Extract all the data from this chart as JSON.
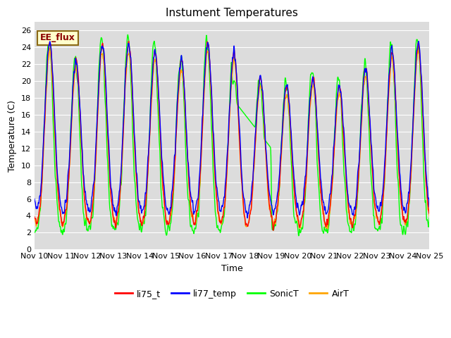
{
  "title": "Instument Temperatures",
  "xlabel": "Time",
  "ylabel": "Temperature (C)",
  "ylim": [
    0,
    27
  ],
  "yticks": [
    0,
    2,
    4,
    6,
    8,
    10,
    12,
    14,
    16,
    18,
    20,
    22,
    24,
    26
  ],
  "xtick_labels": [
    "Nov 10",
    "Nov 11",
    "Nov 12",
    "Nov 13",
    "Nov 14",
    "Nov 15",
    "Nov 16",
    "Nov 17",
    "Nov 18",
    "Nov 19",
    "Nov 20",
    "Nov 21",
    "Nov 22",
    "Nov 23",
    "Nov 24",
    "Nov 25"
  ],
  "plot_bg_color": "#dcdcdc",
  "legend_label": "EE_flux",
  "colors": {
    "li75_t": "#ff0000",
    "li77_temp": "#0000ff",
    "SonicT": "#00ff00",
    "AirT": "#ffa500"
  },
  "line_width": 1.0
}
